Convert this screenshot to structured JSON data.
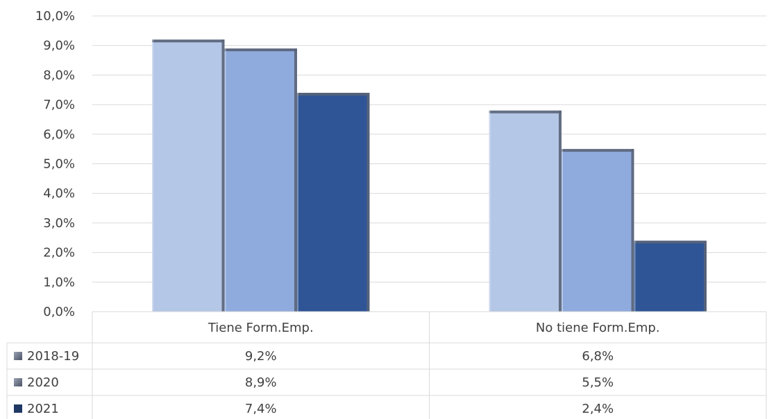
{
  "chart_data": {
    "type": "bar",
    "categories": [
      "Tiene Form.Emp.",
      "No tiene Form.Emp."
    ],
    "series": [
      {
        "name": "2018-19",
        "values": [
          9.2,
          6.8
        ],
        "labels": [
          "9,2%",
          "6,8%"
        ],
        "color": "#B4C7E7"
      },
      {
        "name": "2020",
        "values": [
          8.9,
          5.5
        ],
        "labels": [
          "8,9%",
          "5,5%"
        ],
        "color": "#8FAADC"
      },
      {
        "name": "2021",
        "values": [
          7.4,
          2.4
        ],
        "labels": [
          "7,4%",
          "2,4%"
        ],
        "color": "#2F5597"
      }
    ],
    "ylim": [
      0,
      10
    ],
    "yticks": [
      "0,0%",
      "1,0%",
      "2,0%",
      "3,0%",
      "4,0%",
      "5,0%",
      "6,0%",
      "7,0%",
      "8,0%",
      "9,0%",
      "10,0%"
    ],
    "grid": true,
    "legend": "data-table",
    "edge_color": "#5A6478"
  }
}
